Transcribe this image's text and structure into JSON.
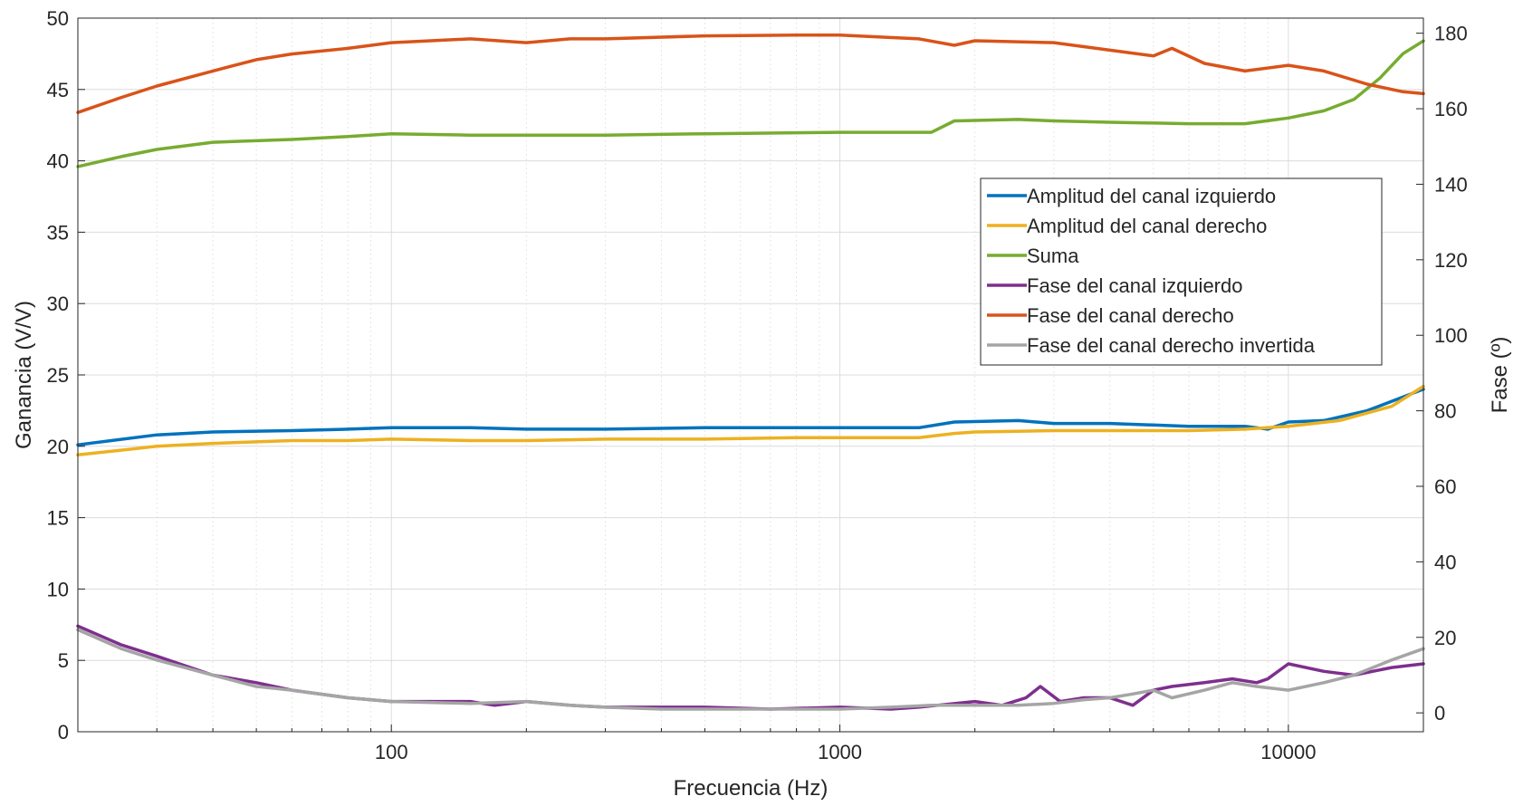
{
  "chart_data": {
    "type": "line",
    "title": "",
    "xlabel": "Frecuencia (Hz)",
    "ylabel_left": "Ganancia (V/V)",
    "ylabel_right": "Fase (º)",
    "xscale": "log",
    "xlim": [
      20,
      20000
    ],
    "ylim_left": [
      0,
      50
    ],
    "ylim_right": [
      -5,
      184
    ],
    "grid": true,
    "legend_position": "right",
    "x_ticks": [
      100,
      1000,
      10000
    ],
    "y_left_ticks": [
      0,
      5,
      10,
      15,
      20,
      25,
      30,
      35,
      40,
      45,
      50
    ],
    "y_right_ticks": [
      0,
      20,
      40,
      60,
      80,
      100,
      120,
      140,
      160,
      180
    ],
    "series": [
      {
        "name": "Amplitud del canal izquierdo",
        "axis": "left",
        "color": "#0072BD",
        "x": [
          20,
          30,
          40,
          60,
          80,
          100,
          150,
          200,
          300,
          500,
          800,
          1000,
          1500,
          1800,
          2500,
          3000,
          4000,
          6000,
          8000,
          9000,
          10000,
          12000,
          15000,
          20000
        ],
        "values": [
          20.1,
          20.8,
          21.0,
          21.1,
          21.2,
          21.3,
          21.3,
          21.2,
          21.2,
          21.3,
          21.3,
          21.3,
          21.3,
          21.7,
          21.8,
          21.6,
          21.6,
          21.4,
          21.4,
          21.2,
          21.7,
          21.8,
          22.5,
          24.0
        ]
      },
      {
        "name": "Amplitud del canal derecho",
        "axis": "left",
        "color": "#EDB120",
        "x": [
          20,
          30,
          40,
          60,
          80,
          100,
          150,
          200,
          300,
          500,
          800,
          1000,
          1500,
          1800,
          2000,
          3000,
          5000,
          6000,
          8000,
          10000,
          13000,
          17000,
          20000
        ],
        "values": [
          19.4,
          20.0,
          20.2,
          20.4,
          20.4,
          20.5,
          20.4,
          20.4,
          20.5,
          20.5,
          20.6,
          20.6,
          20.6,
          20.9,
          21.0,
          21.1,
          21.1,
          21.1,
          21.2,
          21.4,
          21.8,
          22.8,
          24.2
        ]
      },
      {
        "name": "Suma",
        "axis": "left",
        "color": "#77AC30",
        "x": [
          20,
          25,
          30,
          40,
          60,
          80,
          100,
          150,
          200,
          300,
          500,
          1000,
          1600,
          1800,
          2500,
          3000,
          4000,
          6000,
          8000,
          10000,
          12000,
          14000,
          16000,
          18000,
          20000
        ],
        "values": [
          39.6,
          40.3,
          40.8,
          41.3,
          41.5,
          41.7,
          41.9,
          41.8,
          41.8,
          41.8,
          41.9,
          42.0,
          42.0,
          42.8,
          42.9,
          42.8,
          42.7,
          42.6,
          42.6,
          43.0,
          43.5,
          44.3,
          45.8,
          47.5,
          48.4
        ]
      },
      {
        "name": "Fase del canal izquierdo",
        "axis": "right",
        "color": "#7E2F8E",
        "x": [
          20,
          25,
          30,
          40,
          50,
          60,
          80,
          100,
          120,
          150,
          170,
          200,
          250,
          300,
          400,
          500,
          700,
          1000,
          1300,
          1500,
          2000,
          2300,
          2600,
          2800,
          3100,
          3500,
          4000,
          4500,
          5000,
          5500,
          6500,
          7500,
          8500,
          9000,
          10000,
          12000,
          14000,
          17000,
          20000
        ],
        "values": [
          23,
          18,
          15,
          10,
          8,
          6,
          4,
          3,
          3,
          3,
          2,
          3,
          2,
          1.5,
          1.5,
          1.5,
          1,
          1.5,
          1,
          1.5,
          3,
          2,
          4,
          7,
          3,
          4,
          4,
          2,
          6,
          7,
          8,
          9,
          8,
          9,
          13,
          11,
          10,
          12,
          13
        ]
      },
      {
        "name": "Fase del canal derecho",
        "axis": "right",
        "color": "#D95319",
        "x": [
          20,
          25,
          30,
          40,
          50,
          60,
          80,
          100,
          150,
          200,
          250,
          300,
          500,
          800,
          1000,
          1500,
          1800,
          2000,
          3000,
          4000,
          5000,
          5500,
          6500,
          8000,
          10000,
          12000,
          15000,
          18000,
          20000
        ],
        "values": [
          159,
          163,
          166,
          170,
          173,
          174.5,
          176,
          177.5,
          178.5,
          177.5,
          178.5,
          178.5,
          179.3,
          179.5,
          179.5,
          178.5,
          176.8,
          178,
          177.5,
          175.5,
          174,
          176,
          172,
          170,
          171.5,
          170,
          166.5,
          164.5,
          164
        ]
      },
      {
        "name": "Fase del canal derecho invertida",
        "axis": "right",
        "color": "#A5A5A5",
        "x": [
          20,
          25,
          30,
          40,
          50,
          60,
          80,
          100,
          150,
          200,
          250,
          300,
          400,
          500,
          700,
          1000,
          1300,
          1600,
          2000,
          2500,
          3000,
          3500,
          4000,
          4500,
          5000,
          5500,
          6500,
          7500,
          8500,
          10000,
          12000,
          14000,
          17000,
          20000
        ],
        "values": [
          22,
          17,
          14,
          10,
          7,
          6,
          4,
          3,
          2.5,
          3,
          2,
          1.5,
          1,
          1,
          1,
          1,
          1.5,
          2,
          2,
          2,
          2.5,
          3.5,
          4,
          5,
          6,
          4,
          6,
          8,
          7,
          6,
          8,
          10,
          14,
          17
        ]
      }
    ]
  }
}
